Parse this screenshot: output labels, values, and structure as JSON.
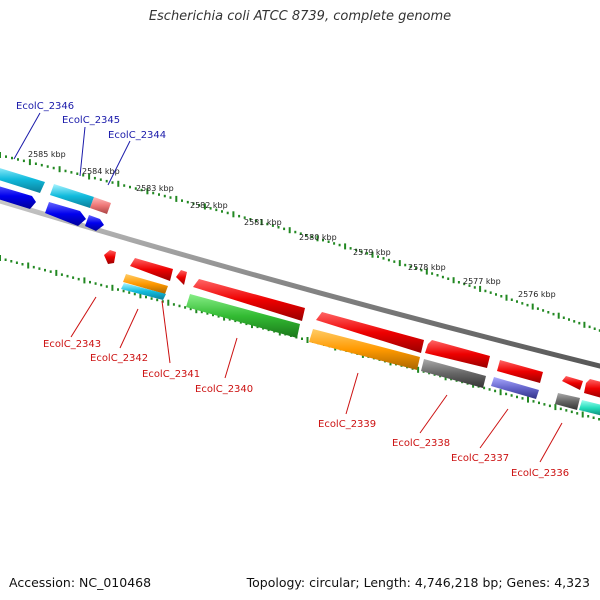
{
  "title": "Escherichia coli ATCC 8739, complete genome",
  "footer": {
    "accession": "Accession: NC_010468",
    "topology": "Topology: circular; Length: 4,746,218 bp; Genes: 4,323"
  },
  "ruler_labels": [
    "2585 kbp",
    "2584 kbp",
    "2583 kbp",
    "2582 kbp",
    "2581 kbp",
    "2580 kbp",
    "2579 kbp",
    "2578 kbp",
    "2577 kbp",
    "2576 kbp"
  ],
  "gene_labels_top": [
    "EcolC_2346",
    "EcolC_2345",
    "EcolC_2344"
  ],
  "gene_labels_bottom": [
    "EcolC_2343",
    "EcolC_2342",
    "EcolC_2341",
    "EcolC_2340",
    "EcolC_2339",
    "EcolC_2338",
    "EcolC_2337",
    "EcolC_2336"
  ],
  "colors": {
    "top_label": "#1a1aaa",
    "bottom_label": "#cc1111",
    "ruler": "#228822",
    "backbone": "#888888"
  }
}
